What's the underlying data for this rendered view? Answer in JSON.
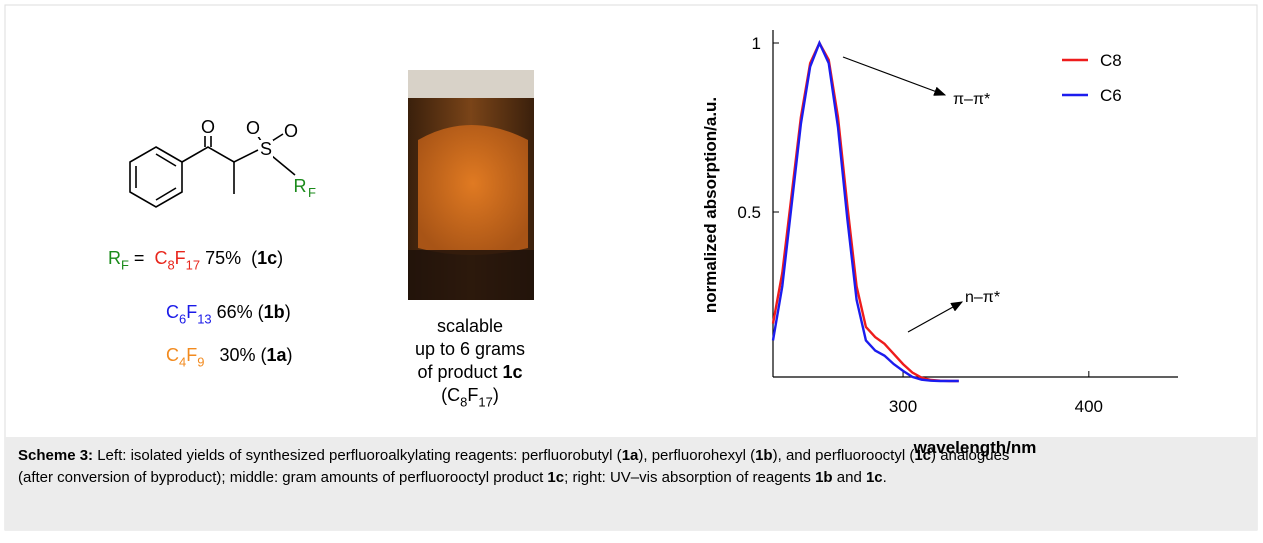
{
  "structure": {
    "labels": [
      "O",
      "O",
      "S",
      "O",
      "R",
      "F"
    ]
  },
  "yields": [
    [
      {
        "text": "R",
        "color": "#1a8a1a"
      },
      {
        "text": "F",
        "color": "#1a8a1a",
        "style": "sub"
      },
      {
        "text": " =  "
      },
      {
        "text": "C",
        "color": "#e8261c"
      },
      {
        "text": "8",
        "color": "#e8261c",
        "style": "sub"
      },
      {
        "text": "F",
        "color": "#e8261c"
      },
      {
        "text": "17",
        "color": "#e8261c",
        "style": "sub"
      },
      {
        "text": " 75%  ("
      },
      {
        "text": "1c",
        "style": "bold"
      },
      {
        "text": ")"
      }
    ],
    [
      {
        "text": "C",
        "color": "#1a1ae8"
      },
      {
        "text": "6",
        "color": "#1a1ae8",
        "style": "sub"
      },
      {
        "text": "F",
        "color": "#1a1ae8"
      },
      {
        "text": "13",
        "color": "#1a1ae8",
        "style": "sub"
      },
      {
        "text": " 66% ("
      },
      {
        "text": "1b",
        "style": "bold"
      },
      {
        "text": ")"
      }
    ],
    [
      {
        "text": "C",
        "color": "#f28a1e"
      },
      {
        "text": "4",
        "color": "#f28a1e",
        "style": "sub"
      },
      {
        "text": "F",
        "color": "#f28a1e"
      },
      {
        "text": "9",
        "color": "#f28a1e",
        "style": "sub"
      },
      {
        "text": "   30% ("
      },
      {
        "text": "1a",
        "style": "bold"
      },
      {
        "text": ")"
      }
    ]
  ],
  "photo_caption": [
    [
      {
        "text": "scalable"
      }
    ],
    [
      {
        "text": "up to 6 grams"
      }
    ],
    [
      {
        "text": "of product "
      },
      {
        "text": "1c",
        "style": "bold"
      }
    ],
    [
      {
        "text": "(C"
      },
      {
        "text": "8",
        "style": "sub"
      },
      {
        "text": "F"
      },
      {
        "text": "17",
        "style": "sub"
      },
      {
        "text": ")"
      }
    ]
  ],
  "chart_data": {
    "type": "line",
    "x_label": "wavelength/nm",
    "y_label": "normalized absorption/a.u.",
    "annotations": [
      "π–π*",
      "n–π*"
    ],
    "xlim": [
      230,
      448
    ],
    "ylim": [
      0,
      1.0
    ],
    "xticks": [
      300,
      400
    ],
    "yticks": [
      0.5,
      1
    ],
    "legend": "top-right",
    "x": [
      230,
      235,
      240,
      245,
      250,
      255,
      260,
      265,
      270,
      275,
      280,
      285,
      290,
      295,
      300,
      305,
      310,
      315,
      320,
      325,
      330
    ],
    "series": [
      {
        "name": "C8",
        "color": "#ee1c1c",
        "values": [
          0.17,
          0.32,
          0.55,
          0.78,
          0.94,
          1.0,
          0.95,
          0.78,
          0.52,
          0.28,
          0.16,
          0.13,
          0.11,
          0.08,
          0.05,
          0.025,
          0.01,
          0.003,
          0.001,
          0,
          0
        ]
      },
      {
        "name": "C6",
        "color": "#1c1cee",
        "values": [
          0.12,
          0.28,
          0.52,
          0.76,
          0.93,
          1.0,
          0.94,
          0.75,
          0.48,
          0.24,
          0.12,
          0.09,
          0.075,
          0.05,
          0.03,
          0.012,
          0.004,
          0.001,
          0,
          0,
          0
        ]
      }
    ]
  },
  "caption": [
    [
      {
        "text": "Scheme 3:",
        "style": "bold"
      },
      {
        "text": " Left: isolated yields of synthesized perfluoroalkylating reagents: perfluorobutyl ("
      },
      {
        "text": "1a",
        "style": "bold"
      },
      {
        "text": "), perfluorohexyl ("
      },
      {
        "text": "1b",
        "style": "bold"
      },
      {
        "text": "), and perfluorooctyl ("
      },
      {
        "text": "1c",
        "style": "bold"
      },
      {
        "text": ") analogues"
      }
    ],
    [
      {
        "text": "(after conversion of byproduct); middle: gram amounts of perfluorooctyl product "
      },
      {
        "text": "1c",
        "style": "bold"
      },
      {
        "text": "; right: UV–vis absorption of reagents "
      },
      {
        "text": "1b",
        "style": "bold"
      },
      {
        "text": " and "
      },
      {
        "text": "1c",
        "style": "bold"
      },
      {
        "text": "."
      }
    ]
  ]
}
